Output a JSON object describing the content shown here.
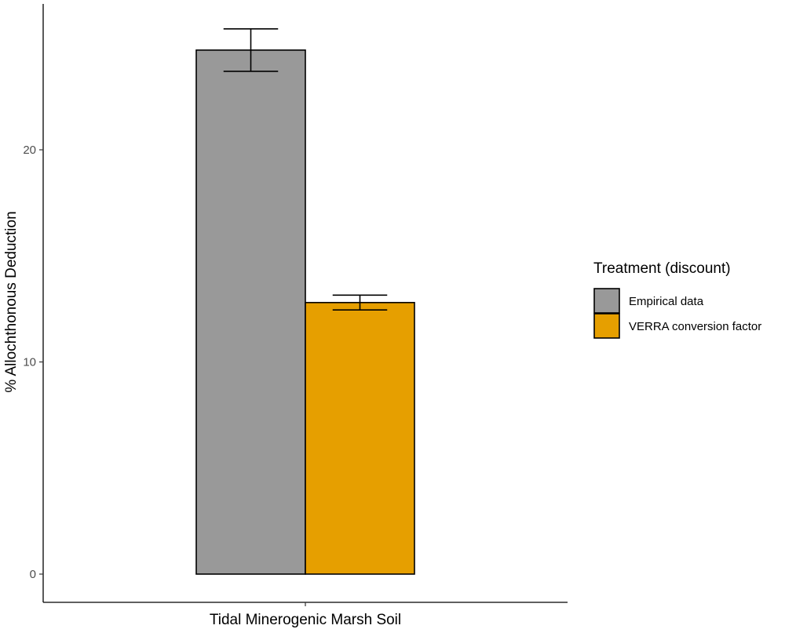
{
  "chart_data": {
    "type": "bar",
    "categories": [
      "Tidal Minerogenic Marsh Soil"
    ],
    "series": [
      {
        "name": "Empirical data",
        "values": [
          24.7
        ],
        "error": [
          1.0
        ],
        "color": "#999999"
      },
      {
        "name": "VERRA conversion factor",
        "values": [
          12.8
        ],
        "error": [
          0.35
        ],
        "color": "#E69F00"
      }
    ],
    "title": "",
    "xlabel": "",
    "ylabel": "% Allochthonous Deduction",
    "ylim": [
      0,
      25
    ],
    "yticks": [
      0,
      10,
      20
    ],
    "legend_title": "Treatment (discount)",
    "legend_position": "right",
    "grid": false
  }
}
